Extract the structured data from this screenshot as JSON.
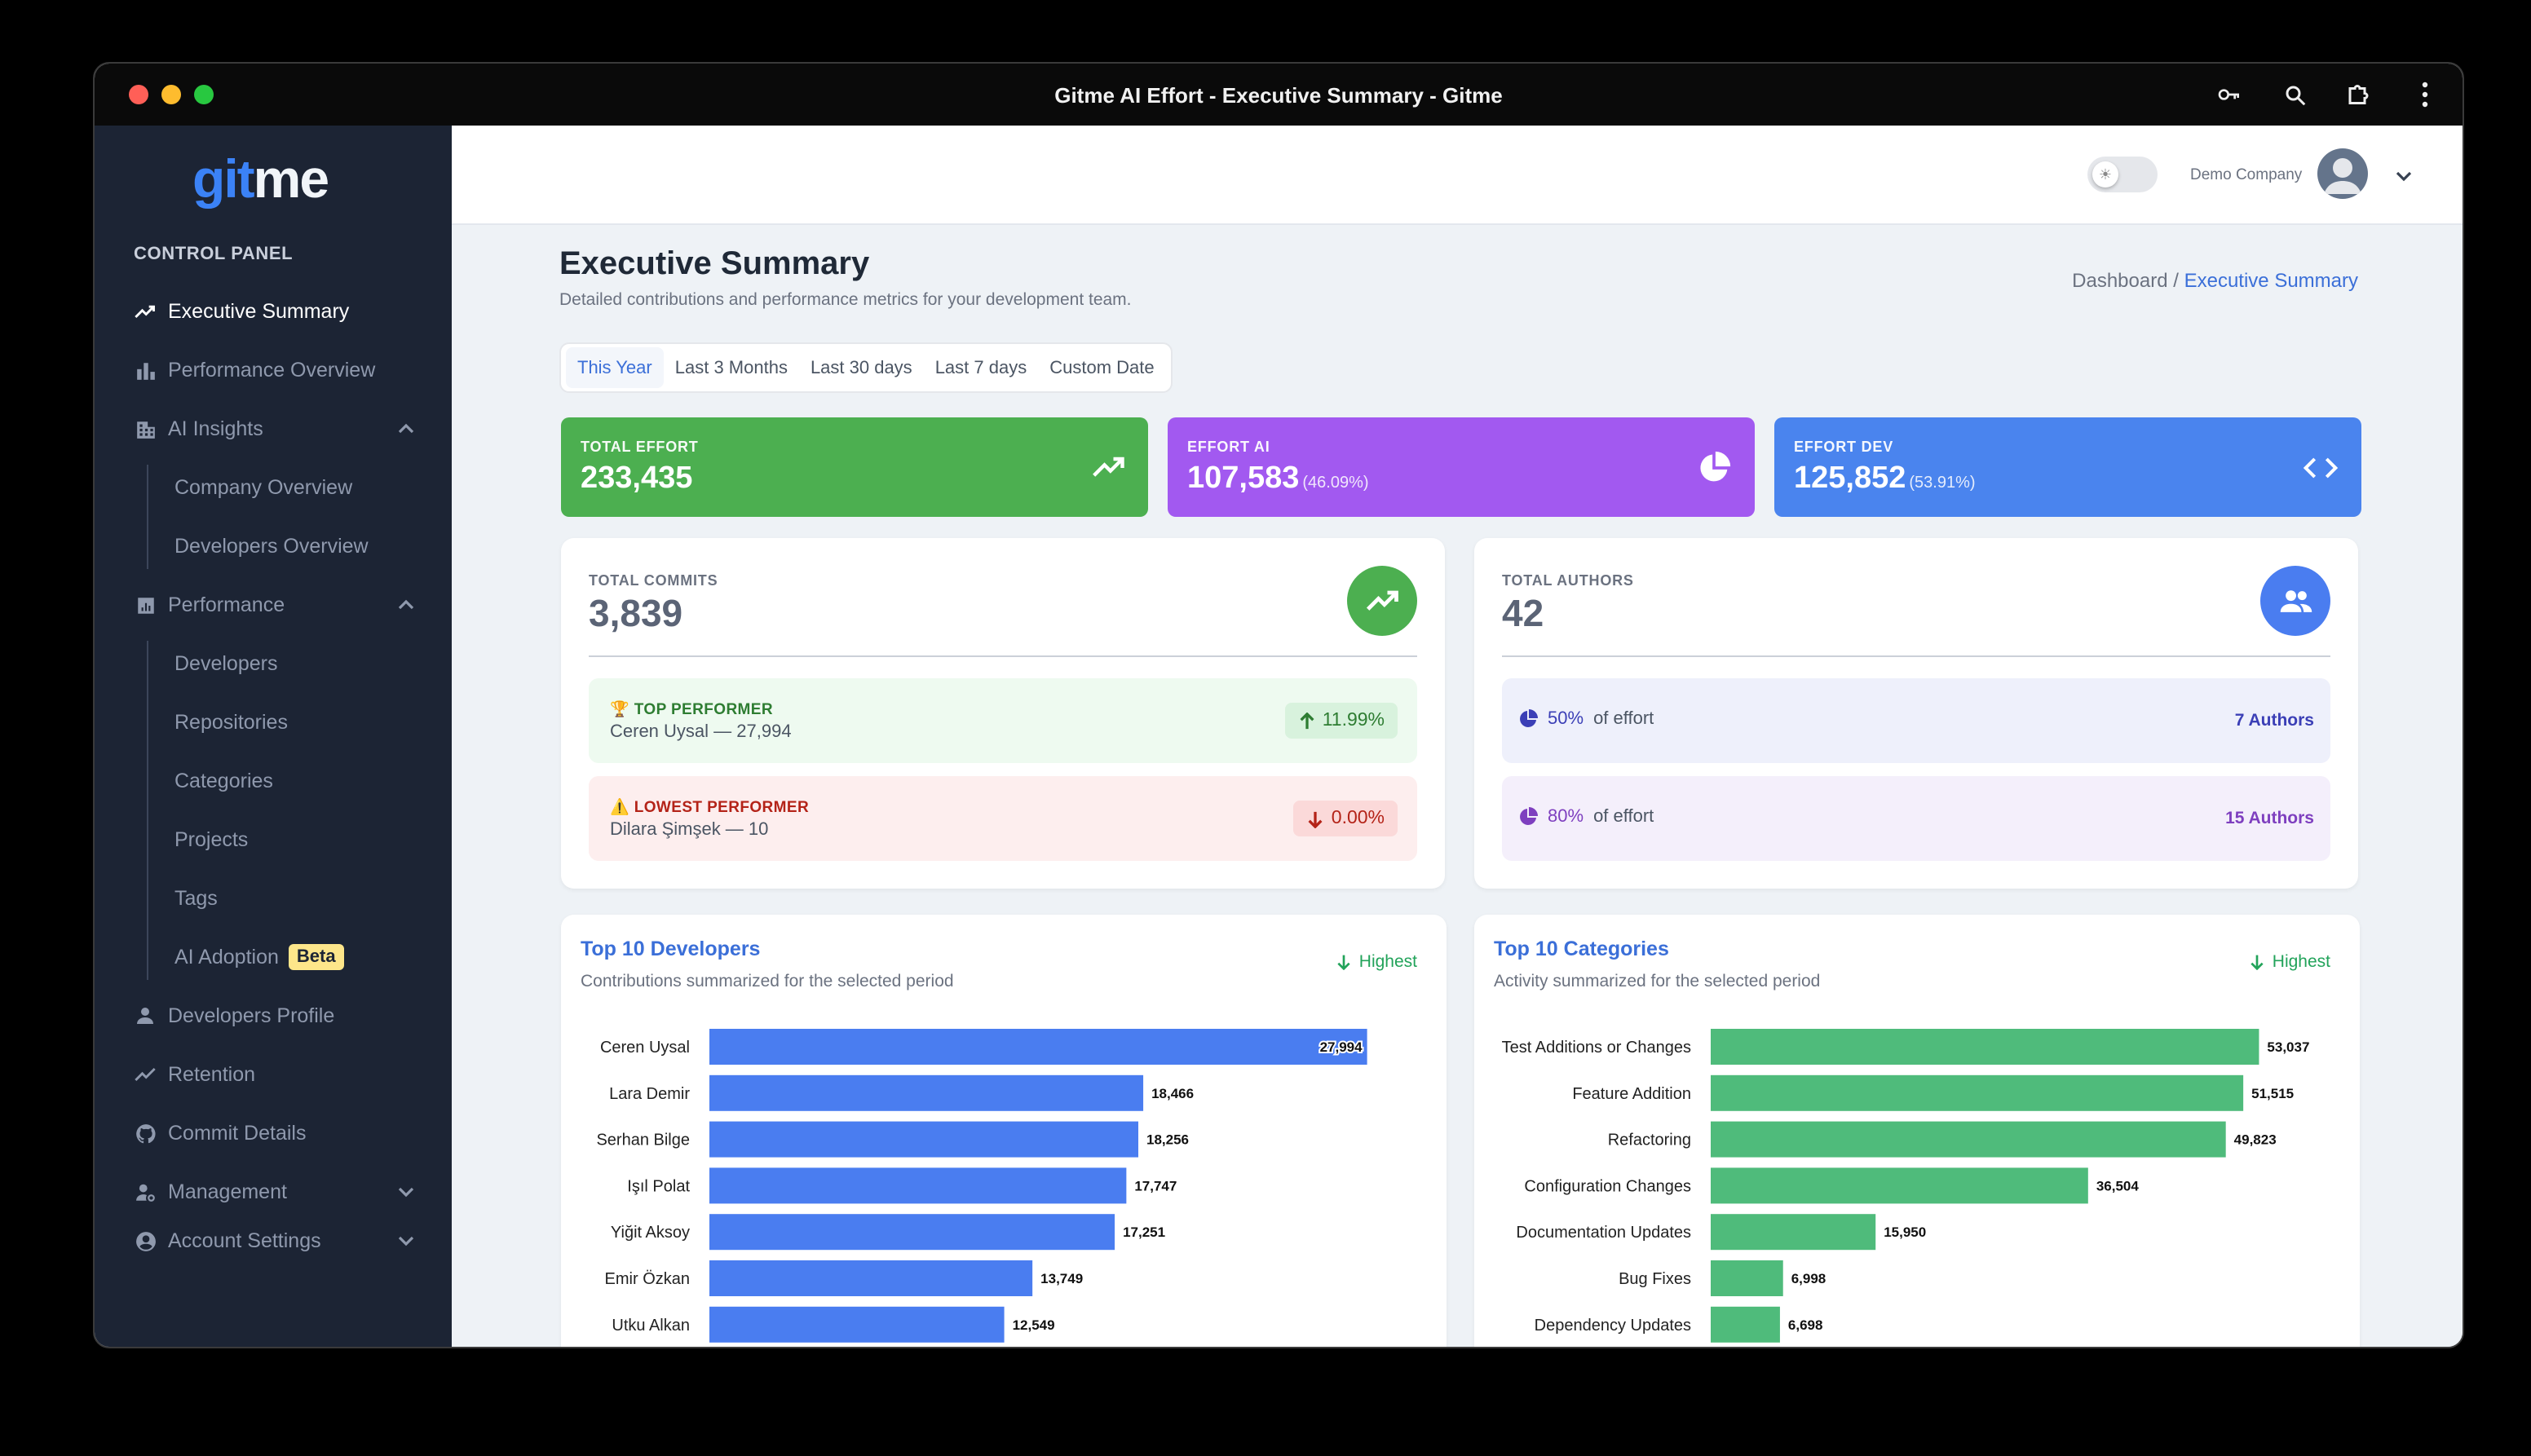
{
  "window": {
    "title": "Gitme AI Effort - Executive Summary - Gitme"
  },
  "logo": {
    "left": "git",
    "right": "me"
  },
  "sidebar": {
    "section_label": "CONTROL PANEL",
    "items": [
      {
        "label": "Executive Summary",
        "icon": "trend-icon"
      },
      {
        "label": "Performance Overview",
        "icon": "bar-chart-icon"
      },
      {
        "label": "AI Insights",
        "icon": "building-icon"
      },
      {
        "label": "Company Overview"
      },
      {
        "label": "Developers Overview"
      },
      {
        "label": "Performance",
        "icon": "analytics-icon"
      },
      {
        "label": "Developers"
      },
      {
        "label": "Repositories"
      },
      {
        "label": "Categories"
      },
      {
        "label": "Projects"
      },
      {
        "label": "Tags"
      },
      {
        "label": "AI Adoption",
        "badge": "Beta"
      },
      {
        "label": "Developers Profile",
        "icon": "person-icon"
      },
      {
        "label": "Retention",
        "icon": "trend-icon"
      },
      {
        "label": "Commit Details",
        "icon": "github-icon"
      },
      {
        "label": "Management",
        "icon": "manage-icon"
      },
      {
        "label": "Account Settings",
        "icon": "account-icon"
      }
    ]
  },
  "topbar": {
    "company": "Demo Company"
  },
  "page": {
    "title": "Executive Summary",
    "subtitle": "Detailed contributions and performance metrics for your development team.",
    "breadcrumb_root": "Dashboard /",
    "breadcrumb_current": "Executive Summary"
  },
  "tabs": [
    "This Year",
    "Last 3 Months",
    "Last 30 days",
    "Last 7 days",
    "Custom Date"
  ],
  "stats": [
    {
      "label": "TOTAL EFFORT",
      "value": "233,435",
      "pct": "",
      "color": "#4caf50"
    },
    {
      "label": "EFFORT AI",
      "value": "107,583",
      "pct": "(46.09%)",
      "color": "#a259f0"
    },
    {
      "label": "EFFORT DEV",
      "value": "125,852",
      "pct": "(53.91%)",
      "color": "#4a84ee"
    }
  ],
  "commits": {
    "label": "TOTAL COMMITS",
    "value": "3,839",
    "top": {
      "title": "🏆 TOP PERFORMER",
      "detail": "Ceren Uysal — 27,994",
      "change": "11.99%"
    },
    "lowest": {
      "title": "⚠️ LOWEST PERFORMER",
      "detail": "Dilara Şimşek — 10",
      "change": "0.00%"
    }
  },
  "authors": {
    "label": "TOTAL AUTHORS",
    "value": "42",
    "rows": [
      {
        "pct": "50%",
        "text": "of effort",
        "count": "7 Authors"
      },
      {
        "pct": "80%",
        "text": "of effort",
        "count": "15 Authors"
      }
    ]
  },
  "charts": {
    "developers": {
      "title": "Top 10 Developers",
      "subtitle": "Contributions summarized for the selected period",
      "sort": "Highest"
    },
    "categories": {
      "title": "Top 10 Categories",
      "subtitle": "Activity summarized for the selected period",
      "sort": "Highest"
    }
  },
  "chart_data": [
    {
      "type": "bar",
      "orientation": "horizontal",
      "color": "#4a7df0",
      "categories": [
        "Ceren Uysal",
        "Lara Demir",
        "Serhan Bilge",
        "Işıl Polat",
        "Yiğit Aksoy",
        "Emir Özkan",
        "Utku Alkan"
      ],
      "values": [
        27994,
        18466,
        18256,
        17747,
        17251,
        13749,
        12549
      ],
      "labels": [
        "27,994",
        "18,466",
        "18,256",
        "17,747",
        "17,251",
        "13,749",
        "12,549"
      ],
      "xlim": [
        0,
        29500
      ]
    },
    {
      "type": "bar",
      "orientation": "horizontal",
      "color": "#4fbb7b",
      "categories": [
        "Test Additions or Changes",
        "Feature Addition",
        "Refactoring",
        "Configuration Changes",
        "Documentation Updates",
        "Bug Fixes",
        "Dependency Updates"
      ],
      "values": [
        53037,
        51515,
        49823,
        36504,
        15950,
        6998,
        6698
      ],
      "labels": [
        "53,037",
        "51,515",
        "49,823",
        "36,504",
        "15,950",
        "6,998",
        "6,698"
      ],
      "xlim": [
        0,
        56000
      ]
    }
  ]
}
